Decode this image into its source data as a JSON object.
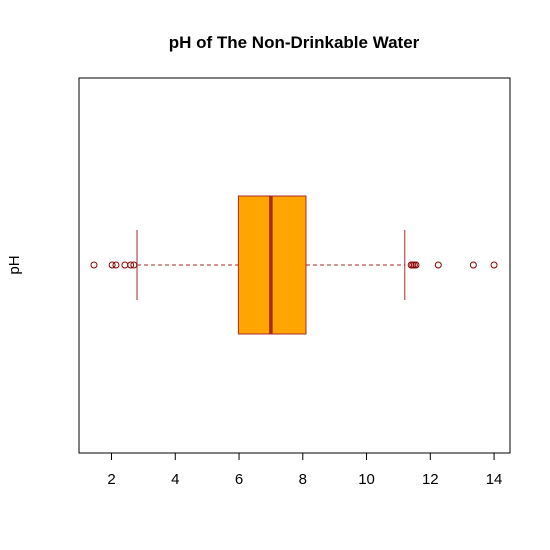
{
  "chart_data": {
    "type": "boxplot",
    "orientation": "horizontal",
    "title": "pH of The Non-Drinkable Water",
    "xlabel": "",
    "ylabel": "pH",
    "xlim": [
      0.98,
      14.5
    ],
    "x_ticks": [
      2,
      4,
      6,
      8,
      10,
      12,
      14
    ],
    "grid": false,
    "legend": "none",
    "box": {
      "whisker_low": 2.8,
      "q1": 5.98,
      "median": 7.0,
      "q3": 8.1,
      "whisker_high": 11.2,
      "outliers": [
        1.45,
        2.02,
        2.14,
        2.42,
        2.6,
        2.7,
        11.4,
        11.45,
        11.5,
        11.55,
        12.25,
        13.35,
        14.0
      ]
    },
    "colors": {
      "box_fill": "#FFA500",
      "box_border": "#A52A2A",
      "median": "#A52A2A",
      "whisker": "#A52A2A",
      "outlier": "#8B0000",
      "axis": "#000000"
    }
  }
}
